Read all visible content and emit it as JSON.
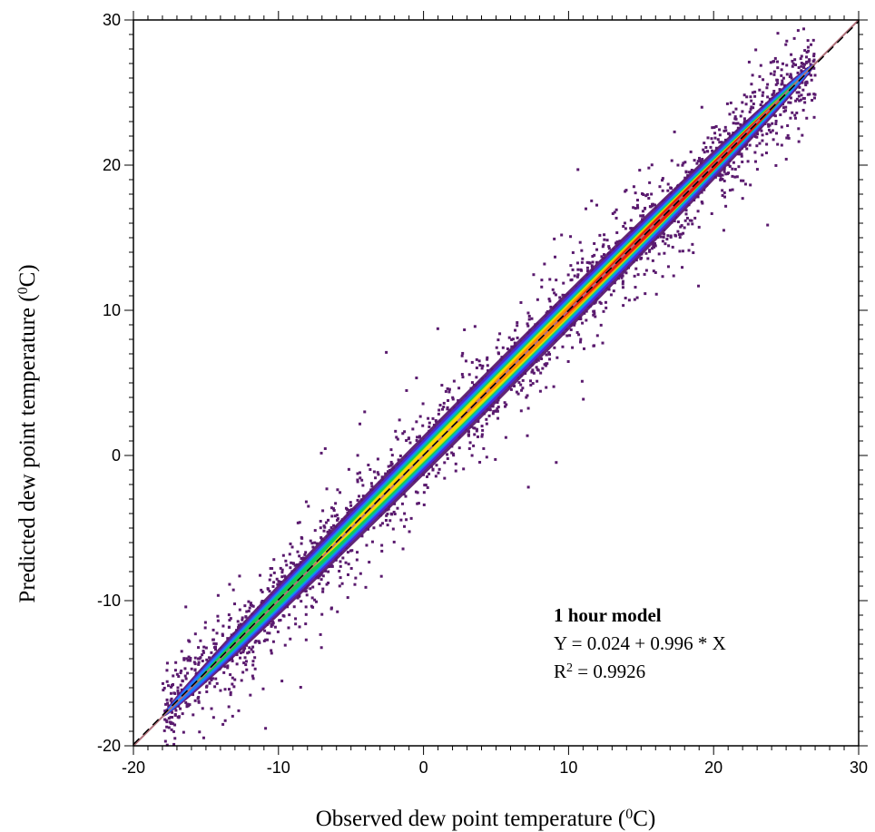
{
  "chart_data": {
    "type": "scatter",
    "title": "",
    "xlabel": "Observed dew point temperature (",
    "xlabel_sup": "0",
    "xlabel_end": "C)",
    "ylabel": "Predicted dew point temperature (",
    "ylabel_sup": "0",
    "ylabel_end": "C)",
    "xlim": [
      -20,
      30
    ],
    "ylim": [
      -20,
      30
    ],
    "x_ticks": [
      -20,
      -10,
      0,
      10,
      20,
      30
    ],
    "y_ticks": [
      -20,
      -10,
      0,
      10,
      20,
      30
    ],
    "x_tick_labels": [
      "-20",
      "-10",
      "0",
      "10",
      "20",
      "30"
    ],
    "y_tick_labels": [
      "-20",
      "-10",
      "0",
      "10",
      "20",
      "30"
    ],
    "grid": false,
    "point_color": "#5a1a6e",
    "density_colormap": [
      "#5a1a6e",
      "#4b2bd6",
      "#1e7dff",
      "#00b5c8",
      "#16c84a",
      "#b8e61a",
      "#ffd400",
      "#ff8a00",
      "#e8150f"
    ],
    "regression": {
      "intercept": 0.024,
      "slope": 0.996,
      "line_color": "#000000",
      "line_style": "dashed"
    },
    "reference_line": {
      "description": "1:1",
      "color": "#b0707a"
    },
    "annotation": {
      "title": "1 hour model",
      "equation": "Y = 0.024 + 0.996 * X",
      "r2_label": "R",
      "r2_sup": "2",
      "r2_value": " = 0.9926"
    },
    "density_centers": [
      {
        "x": -15,
        "y": -15
      },
      {
        "x": -5,
        "y": -5
      },
      {
        "x": 5,
        "y": 5
      },
      {
        "x": 15,
        "y": 15
      },
      {
        "x": 22,
        "y": 22
      }
    ]
  }
}
